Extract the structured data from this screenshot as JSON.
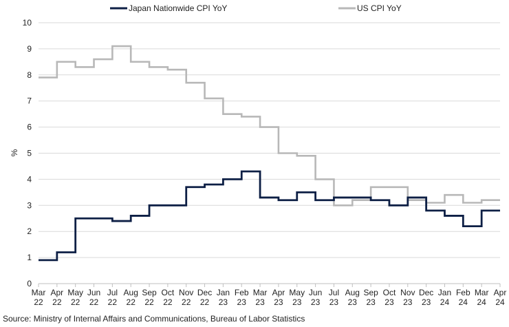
{
  "chart_data": {
    "type": "line",
    "step": true,
    "ylabel": "%",
    "ylim": [
      0,
      10
    ],
    "yticks": [
      0,
      1,
      2,
      3,
      4,
      5,
      6,
      7,
      8,
      9,
      10
    ],
    "grid": "horizontal",
    "legend_position": "top",
    "categories": [
      [
        "Mar",
        "22"
      ],
      [
        "Apr",
        "22"
      ],
      [
        "May",
        "22"
      ],
      [
        "Jun",
        "22"
      ],
      [
        "Jul",
        "22"
      ],
      [
        "Aug",
        "22"
      ],
      [
        "Sep",
        "22"
      ],
      [
        "Oct",
        "22"
      ],
      [
        "Nov",
        "22"
      ],
      [
        "Dec",
        "22"
      ],
      [
        "Jan",
        "23"
      ],
      [
        "Feb",
        "23"
      ],
      [
        "Mar",
        "23"
      ],
      [
        "Apr",
        "23"
      ],
      [
        "May",
        "23"
      ],
      [
        "Jun",
        "23"
      ],
      [
        "Jul",
        "23"
      ],
      [
        "Aug",
        "23"
      ],
      [
        "Sep",
        "23"
      ],
      [
        "Oct",
        "23"
      ],
      [
        "Nov",
        "23"
      ],
      [
        "Dec",
        "23"
      ],
      [
        "Jan",
        "24"
      ],
      [
        "Feb",
        "24"
      ],
      [
        "Mar",
        "24"
      ],
      [
        "Apr",
        "24"
      ]
    ],
    "series": [
      {
        "name": "Japan Nationwide CPI YoY",
        "color": "#0d1f45",
        "values": [
          0.9,
          1.2,
          2.5,
          2.5,
          2.4,
          2.6,
          3.0,
          3.0,
          3.7,
          3.8,
          4.0,
          4.3,
          3.3,
          3.2,
          3.5,
          3.2,
          3.3,
          3.3,
          3.2,
          3.0,
          3.3,
          2.8,
          2.6,
          2.2,
          2.8,
          2.8
        ]
      },
      {
        "name": "US CPI YoY",
        "color": "#b8b8b8",
        "values": [
          7.9,
          8.5,
          8.3,
          8.6,
          9.1,
          8.5,
          8.3,
          8.2,
          7.7,
          7.1,
          6.5,
          6.4,
          6.0,
          5.0,
          4.9,
          4.0,
          3.0,
          3.2,
          3.7,
          3.7,
          3.2,
          3.1,
          3.4,
          3.1,
          3.2,
          3.2
        ]
      }
    ]
  },
  "source_text": "Source: Ministry of Internal Affairs and Communications, Bureau of Labor Statistics"
}
